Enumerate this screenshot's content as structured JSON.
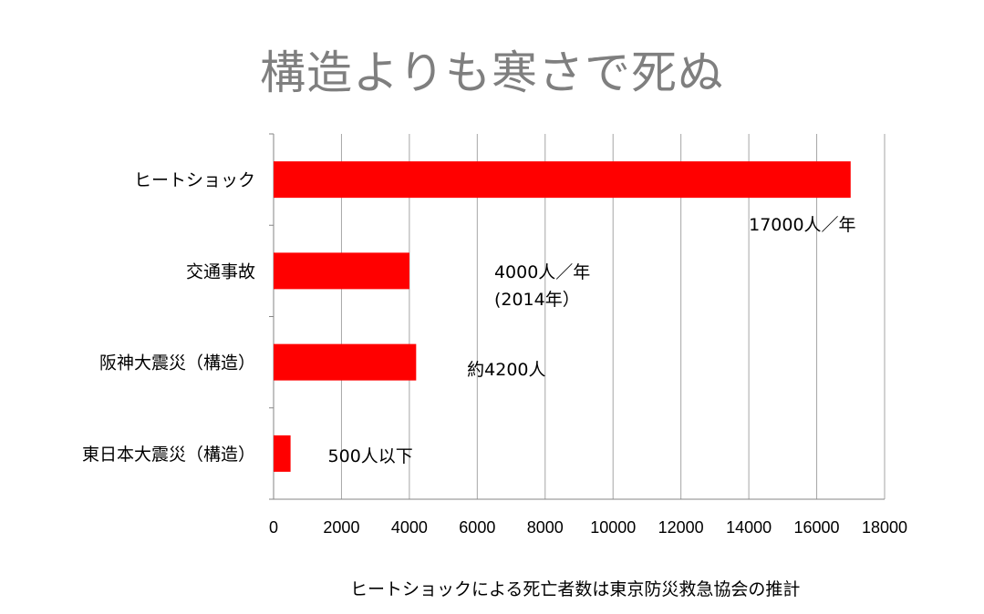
{
  "chart_data": {
    "type": "bar",
    "orientation": "horizontal",
    "title": "構造よりも寒さで死ぬ",
    "categories": [
      "ヒートショック",
      "交通事故",
      "阪神大震災（構造）",
      "東日本大震災（構造）"
    ],
    "values": [
      17000,
      4000,
      4200,
      500
    ],
    "data_labels": [
      [
        "17000人／年"
      ],
      [
        "4000人／年",
        "(2014年）"
      ],
      [
        "約4200人"
      ],
      [
        "500人以下"
      ]
    ],
    "xlim": [
      0,
      18000
    ],
    "xticks": [
      "0",
      "2000",
      "4000",
      "6000",
      "8000",
      "10000",
      "12000",
      "14000",
      "16000",
      "18000"
    ],
    "grid": "vertical",
    "bar_color": "#ff0000",
    "title_color": "#7f7f7f"
  },
  "footnote": "ヒートショックによる死亡者数は東京防災救急協会の推計"
}
